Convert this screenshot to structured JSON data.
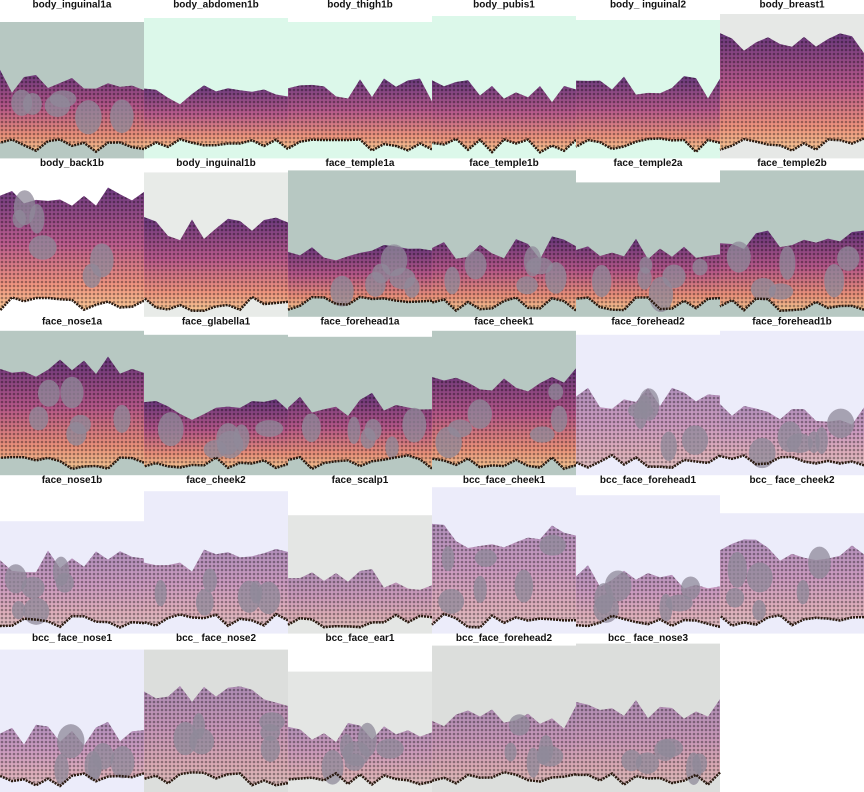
{
  "panels": [
    {
      "title": "body_inguinal1a"
    },
    {
      "title": "body_abdomen1b"
    },
    {
      "title": "body_thigh1b"
    },
    {
      "title": "body_pubis1"
    },
    {
      "title": "body_ inguinal2"
    },
    {
      "title": "body_breast1"
    },
    {
      "title": "body_back1b"
    },
    {
      "title": "body_inguinal1b"
    },
    {
      "title": "face_temple1a"
    },
    {
      "title": "face_temple1b"
    },
    {
      "title": "face_temple2a"
    },
    {
      "title": "face_temple2b"
    },
    {
      "title": "face_nose1a"
    },
    {
      "title": "face_glabella1"
    },
    {
      "title": "face_forehead1a"
    },
    {
      "title": "face_cheek1"
    },
    {
      "title": "face_forehead2"
    },
    {
      "title": "face_forehead1b"
    },
    {
      "title": "face_nose1b"
    },
    {
      "title": "face_cheek2"
    },
    {
      "title": "face_scalp1"
    },
    {
      "title": "bcc_face_cheek1"
    },
    {
      "title": "bcc_face_forehead1"
    },
    {
      "title": "bcc_ face_cheek2"
    },
    {
      "title": "bcc_ face_nose1"
    },
    {
      "title": "bcc_ face_nose2"
    },
    {
      "title": "bcc_face_ear1"
    },
    {
      "title": "bcc_face_forehead2"
    },
    {
      "title": "bcc_ face_nose3"
    }
  ]
}
